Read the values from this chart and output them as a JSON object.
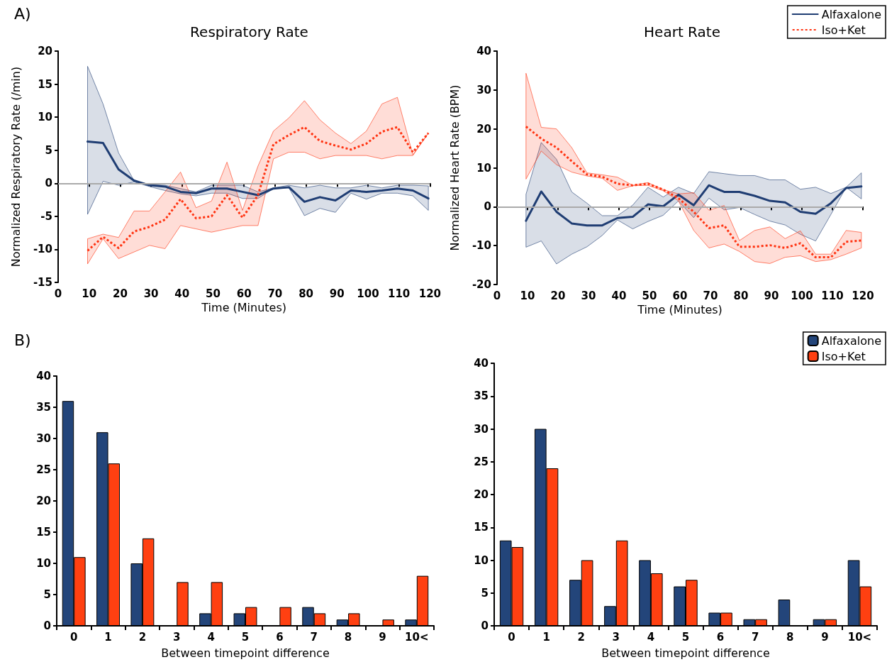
{
  "chart_data": [
    {
      "type": "line",
      "title": "Respiratory Rate",
      "xlabel": "Time (Minutes)",
      "ylabel": "Normalized Respiratory Rate (/min)",
      "annotations": [
        "A)"
      ],
      "x": [
        9.5,
        14.5,
        19.5,
        24.5,
        29.5,
        34.5,
        39.5,
        44.5,
        49.5,
        54.5,
        59.5,
        64.5,
        69.5,
        74.5,
        79.5,
        84.5,
        89.5,
        94.5,
        99.5,
        104.5,
        109.5,
        114.5,
        119.5
      ],
      "series": [
        {
          "color": "#1f3d73",
          "line_style": "solid",
          "values": [
            6.3,
            6.1,
            2.1,
            0.4,
            -0.3,
            -0.5,
            -1.3,
            -1.5,
            -0.8,
            -0.8,
            -1.3,
            -1.8,
            -0.8,
            -0.6,
            -2.8,
            -2.1,
            -2.6,
            -1.1,
            -1.3,
            -1.1,
            -0.8,
            -1.1,
            -2.3
          ],
          "upper": [
            17.7,
            12,
            4.6,
            0.4,
            -0.2,
            -0.3,
            -0.8,
            -1.3,
            -0.3,
            -0.3,
            -0.3,
            -1.3,
            -0.7,
            -0.3,
            -0.7,
            -0.3,
            -0.7,
            -0.7,
            -0.3,
            -0.7,
            -0.3,
            -0.3,
            -0.4
          ],
          "lower": [
            -4.7,
            0.3,
            -0.3,
            0.2,
            -0.5,
            -1.1,
            -1.6,
            -1.9,
            -1.5,
            -1.5,
            -2.3,
            -2.3,
            -0.8,
            -0.7,
            -4.9,
            -3.8,
            -4.4,
            -1.5,
            -2.4,
            -1.5,
            -1.5,
            -1.9,
            -4.1
          ]
        },
        {
          "color": "#ff3311",
          "line_style": "dotted",
          "values": [
            -10.2,
            -8.1,
            -9.8,
            -7.3,
            -6.6,
            -5.5,
            -2.4,
            -5.3,
            -5.0,
            -1.8,
            -5.2,
            -1.8,
            5.9,
            7.3,
            8.5,
            6.4,
            5.7,
            5.1,
            6.0,
            7.8,
            8.5,
            4.7,
            7.6
          ],
          "upper": [
            -8.4,
            -7.7,
            -8.2,
            -4.2,
            -4.2,
            -1.3,
            1.7,
            -3.7,
            -2.7,
            3.2,
            -4.1,
            2.6,
            7.9,
            9.9,
            12.5,
            9.6,
            7.6,
            6.0,
            7.9,
            12.0,
            13.0,
            4.3,
            7.6
          ],
          "lower": [
            -12.2,
            -8.4,
            -11.4,
            -10.4,
            -9.4,
            -9.9,
            -6.4,
            -6.9,
            -7.4,
            -6.9,
            -6.4,
            -6.4,
            3.7,
            4.7,
            4.7,
            3.7,
            4.2,
            4.2,
            4.2,
            3.7,
            4.2,
            4.2,
            7.6
          ]
        }
      ],
      "xlim": [
        0,
        120
      ],
      "xticks": [
        0,
        10,
        20,
        30,
        40,
        50,
        60,
        70,
        80,
        90,
        100,
        110,
        120
      ],
      "ylim": [
        -15,
        20
      ],
      "yticks": [
        -15,
        -10,
        -5,
        0,
        5,
        10,
        15,
        20
      ],
      "ref_lines": [
        {
          "axis": "y",
          "value": 0,
          "color": "#aaaaaa"
        }
      ],
      "grid": false,
      "legend": false,
      "marker": "none"
    },
    {
      "type": "line",
      "title": "Heart Rate",
      "xlabel": "Time (Minutes)",
      "ylabel": "Normalized Heart Rate (BPM)",
      "x": [
        9.5,
        14.5,
        19.5,
        24.5,
        29.5,
        34.5,
        39.5,
        44.5,
        49.5,
        54.5,
        59.5,
        64.5,
        69.5,
        74.5,
        79.5,
        84.5,
        89.5,
        94.5,
        99.5,
        104.5,
        109.5,
        114.5,
        119.5
      ],
      "series": [
        {
          "name": "Alfaxalone",
          "color": "#1f3d73",
          "line_style": "solid",
          "values": [
            -3.6,
            3.9,
            -1.3,
            -4.3,
            -4.8,
            -4.8,
            -2.9,
            -2.6,
            0.6,
            0.1,
            3.1,
            0.4,
            5.5,
            3.8,
            3.8,
            2.8,
            1.5,
            1.1,
            -1.3,
            -1.8,
            0.9,
            4.8,
            5.2
          ],
          "upper": [
            3.2,
            16.5,
            12.2,
            3.8,
            0.9,
            -2.3,
            -2.3,
            0.4,
            5.0,
            2.5,
            5.0,
            3.4,
            9.0,
            8.5,
            8.0,
            8.0,
            6.9,
            6.9,
            4.5,
            5.0,
            3.4,
            5.0,
            8.7
          ],
          "lower": [
            -10.4,
            -8.8,
            -14.7,
            -12.2,
            -10.3,
            -7.4,
            -3.4,
            -5.7,
            -3.8,
            -2.2,
            1.5,
            -2.8,
            2.2,
            -0.8,
            -0.2,
            -2.0,
            -3.7,
            -4.7,
            -7.1,
            -8.8,
            -2.0,
            5.0,
            2.0
          ]
        },
        {
          "name": "Iso+Ket",
          "color": "#ff3311",
          "line_style": "dotted",
          "values": [
            20.6,
            17.5,
            15.2,
            11.7,
            8.3,
            7.7,
            5.9,
            5.5,
            5.9,
            4.4,
            2.2,
            -1.3,
            -5.5,
            -4.8,
            -10.3,
            -10.3,
            -9.9,
            -10.6,
            -9.4,
            -13.0,
            -13.0,
            -9.0,
            -8.7
          ],
          "upper": [
            34.3,
            20.4,
            20.0,
            15.2,
            8.7,
            8.2,
            7.6,
            5.5,
            6.2,
            4.4,
            3.3,
            3.6,
            -0.9,
            0.3,
            -8.7,
            -6.1,
            -5.2,
            -8.2,
            -6.2,
            -12.2,
            -12.2,
            -6.1,
            -6.6
          ],
          "lower": [
            7.1,
            14.3,
            10.8,
            8.9,
            7.9,
            7.3,
            4.2,
            5.4,
            5.5,
            4.1,
            1.5,
            -6.1,
            -10.6,
            -9.6,
            -11.5,
            -14.1,
            -14.6,
            -13.0,
            -12.6,
            -14.1,
            -13.6,
            -12.2,
            -10.6
          ]
        }
      ],
      "xlim": [
        0,
        120
      ],
      "xticks": [
        0,
        10,
        20,
        30,
        40,
        50,
        60,
        70,
        80,
        90,
        100,
        110,
        120
      ],
      "ylim": [
        -20,
        40
      ],
      "yticks": [
        -20,
        -10,
        0,
        10,
        20,
        30,
        40
      ],
      "ref_lines": [
        {
          "axis": "y",
          "value": 0,
          "color": "#aaaaaa"
        }
      ],
      "grid": false,
      "legend": "top right",
      "marker": "none"
    },
    {
      "type": "bar",
      "xlabel": "Between timepoint difference",
      "annotations": [
        "B)"
      ],
      "categories": [
        "0",
        "1",
        "2",
        "3",
        "4",
        "5",
        "6",
        "7",
        "8",
        "9",
        "10<"
      ],
      "series": [
        {
          "color": "#23457a",
          "values": [
            36,
            31,
            10,
            0,
            2,
            2,
            0,
            3,
            1,
            0,
            1
          ]
        },
        {
          "color": "#ff4011",
          "values": [
            11,
            26,
            14,
            7,
            7,
            3,
            3,
            2,
            2,
            1,
            8
          ]
        }
      ],
      "ylim": [
        0,
        40
      ],
      "yticks": [
        0,
        5,
        10,
        15,
        20,
        25,
        30,
        35,
        40
      ],
      "grid": false,
      "legend": false
    },
    {
      "type": "bar",
      "xlabel": "Between timepoint difference",
      "categories": [
        "0",
        "1",
        "2",
        "3",
        "4",
        "5",
        "6",
        "7",
        "8",
        "9",
        "10<"
      ],
      "series": [
        {
          "name": "Alfaxalone",
          "color": "#23457a",
          "values": [
            13,
            30,
            7,
            3,
            10,
            6,
            2,
            1,
            4,
            1,
            10
          ]
        },
        {
          "name": "Iso+Ket",
          "color": "#ff4011",
          "values": [
            12,
            24,
            10,
            13,
            8,
            7,
            2,
            1,
            0,
            1,
            6
          ]
        }
      ],
      "ylim": [
        0,
        40
      ],
      "yticks": [
        0,
        5,
        10,
        15,
        20,
        25,
        30,
        35,
        40
      ],
      "grid": false,
      "legend": "top right"
    }
  ]
}
